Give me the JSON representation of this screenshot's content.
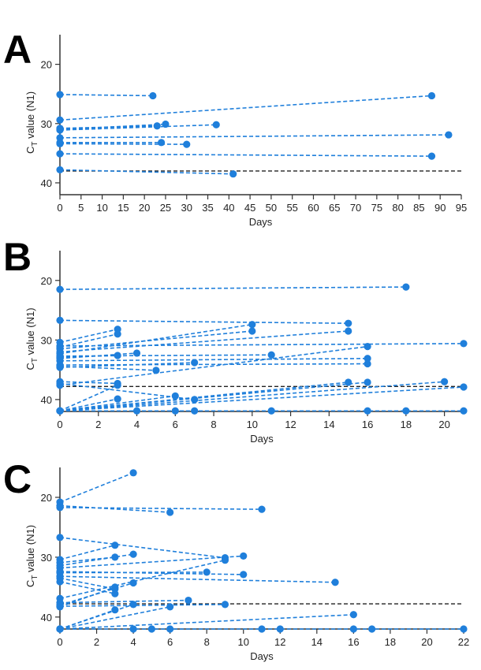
{
  "colors": {
    "series": "#1f7fdb",
    "threshold": "#222222",
    "axis": "#333333"
  },
  "chart_data": [
    {
      "panel": "A",
      "type": "scatter",
      "xlabel": "Days",
      "ylabel": "CT value (N1)",
      "ylabel_parts": {
        "main": "C",
        "sub": "T",
        "rest": " value (N1)"
      },
      "xlim": [
        0,
        95
      ],
      "ylim": [
        15,
        42
      ],
      "y_inverted": true,
      "xticks": [
        0,
        5,
        10,
        15,
        20,
        25,
        30,
        35,
        40,
        45,
        50,
        55,
        60,
        65,
        70,
        75,
        80,
        85,
        90,
        95
      ],
      "yticks": [
        20,
        30,
        40
      ],
      "threshold": 38,
      "series": [
        {
          "points": [
            [
              0,
              25.1
            ],
            [
              22,
              25.3
            ]
          ]
        },
        {
          "points": [
            [
              0,
              29.4
            ],
            [
              88,
              25.3
            ]
          ]
        },
        {
          "points": [
            [
              0,
              30.8
            ],
            [
              23,
              30.4
            ]
          ]
        },
        {
          "points": [
            [
              0,
              31.0
            ],
            [
              25,
              30.1
            ]
          ]
        },
        {
          "points": [
            [
              0,
              31.1
            ],
            [
              37,
              30.2
            ]
          ]
        },
        {
          "points": [
            [
              0,
              32.4
            ],
            [
              92,
              31.9
            ]
          ]
        },
        {
          "points": [
            [
              0,
              33.2
            ],
            [
              24,
              33.2
            ]
          ]
        },
        {
          "points": [
            [
              0,
              33.4
            ],
            [
              30,
              33.5
            ]
          ]
        },
        {
          "points": [
            [
              0,
              35.1
            ],
            [
              88,
              35.5
            ]
          ]
        },
        {
          "points": [
            [
              0,
              37.8
            ],
            [
              41,
              38.5
            ]
          ]
        }
      ]
    },
    {
      "panel": "B",
      "type": "scatter",
      "xlabel": "Days",
      "ylabel": "CT value (N1)",
      "ylabel_parts": {
        "main": "C",
        "sub": "T",
        "rest": " value (N1)"
      },
      "xlim": [
        0,
        21
      ],
      "ylim": [
        15,
        42
      ],
      "y_inverted": true,
      "xticks": [
        0,
        2,
        4,
        6,
        8,
        10,
        12,
        14,
        16,
        18,
        20
      ],
      "yticks": [
        20,
        30,
        40
      ],
      "threshold": 37.8,
      "series": [
        {
          "points": [
            [
              0,
              21.5
            ],
            [
              18,
              21.1
            ]
          ]
        },
        {
          "points": [
            [
              0,
              26.7
            ],
            [
              15,
              27.2
            ]
          ]
        },
        {
          "points": [
            [
              0,
              30.4
            ],
            [
              3,
              28.2
            ]
          ]
        },
        {
          "points": [
            [
              0,
              31.2
            ],
            [
              3,
              29.0
            ]
          ]
        },
        {
          "points": [
            [
              0,
              31.0
            ],
            [
              21,
              30.6
            ]
          ]
        },
        {
          "points": [
            [
              0,
              31.5
            ],
            [
              10,
              28.5
            ]
          ]
        },
        {
          "points": [
            [
              0,
              32.3
            ],
            [
              10,
              27.4
            ]
          ]
        },
        {
          "points": [
            [
              0,
              32.0
            ],
            [
              15,
              28.5
            ]
          ]
        },
        {
          "points": [
            [
              0,
              32.9
            ],
            [
              3,
              32.6
            ]
          ]
        },
        {
          "points": [
            [
              0,
              33.1
            ],
            [
              4,
              32.2
            ]
          ]
        },
        {
          "points": [
            [
              0,
              32.7
            ],
            [
              11,
              32.5
            ]
          ]
        },
        {
          "points": [
            [
              0,
              34.6
            ],
            [
              7,
              33.8
            ]
          ]
        },
        {
          "points": [
            [
              0,
              34.4
            ],
            [
              5,
              35.1
            ]
          ]
        },
        {
          "points": [
            [
              0,
              34.2
            ],
            [
              16,
              34.0
            ]
          ]
        },
        {
          "points": [
            [
              0,
              33.5
            ],
            [
              16,
              33.1
            ]
          ]
        },
        {
          "points": [
            [
              0,
              37.0
            ],
            [
              3,
              37.3
            ]
          ]
        },
        {
          "points": [
            [
              0,
              37.6
            ],
            [
              16,
              31.1
            ]
          ]
        },
        {
          "points": [
            [
              0,
              41.9
            ],
            [
              3,
              37.6
            ]
          ]
        },
        {
          "points": [
            [
              0,
              41.9
            ],
            [
              6,
              39.4
            ]
          ]
        },
        {
          "points": [
            [
              0,
              41.9
            ],
            [
              3,
              39.9
            ]
          ]
        },
        {
          "points": [
            [
              0,
              37.3
            ],
            [
              7,
              40.0
            ]
          ]
        },
        {
          "points": [
            [
              0,
              41.9
            ],
            [
              15,
              37.1
            ]
          ]
        },
        {
          "points": [
            [
              0,
              41.9
            ],
            [
              16,
              37.1
            ]
          ]
        },
        {
          "points": [
            [
              0,
              41.9
            ],
            [
              20,
              37.0
            ]
          ]
        },
        {
          "points": [
            [
              0,
              41.9
            ],
            [
              21,
              37.9
            ]
          ]
        },
        {
          "points": [
            [
              0,
              41.9
            ],
            [
              4,
              41.9
            ],
            [
              6,
              41.9
            ],
            [
              7,
              41.9
            ],
            [
              11,
              41.9
            ],
            [
              16,
              41.9
            ],
            [
              18,
              41.9
            ],
            [
              21,
              41.9
            ]
          ]
        }
      ]
    },
    {
      "panel": "C",
      "type": "scatter",
      "xlabel": "Days",
      "ylabel": "CT value (N1)",
      "ylabel_parts": {
        "main": "C",
        "sub": "T",
        "rest": " value (N1)"
      },
      "xlim": [
        0,
        22
      ],
      "ylim": [
        15,
        42
      ],
      "y_inverted": true,
      "xticks": [
        0,
        2,
        4,
        6,
        8,
        10,
        12,
        14,
        16,
        18,
        20,
        22
      ],
      "yticks": [
        20,
        30,
        40
      ],
      "threshold": 37.8,
      "series": [
        {
          "points": [
            [
              0,
              20.8
            ],
            [
              4,
              15.9
            ]
          ]
        },
        {
          "points": [
            [
              0,
              21.4
            ],
            [
              6,
              22.5
            ]
          ]
        },
        {
          "points": [
            [
              0,
              21.7
            ],
            [
              11,
              22.0
            ]
          ]
        },
        {
          "points": [
            [
              0,
              26.7
            ],
            [
              9,
              30.1
            ]
          ]
        },
        {
          "points": [
            [
              0,
              30.4
            ],
            [
              3,
              28.0
            ]
          ]
        },
        {
          "points": [
            [
              0,
              30.9
            ],
            [
              3,
              30.0
            ]
          ]
        },
        {
          "points": [
            [
              0,
              31.4
            ],
            [
              4,
              29.5
            ]
          ]
        },
        {
          "points": [
            [
              0,
              31.8
            ],
            [
              10,
              29.8
            ]
          ]
        },
        {
          "points": [
            [
              0,
              32.6
            ],
            [
              8,
              32.5
            ]
          ]
        },
        {
          "points": [
            [
              0,
              32.4
            ],
            [
              10,
              32.9
            ]
          ]
        },
        {
          "points": [
            [
              0,
              33.2
            ],
            [
              15,
              34.2
            ]
          ]
        },
        {
          "points": [
            [
              0,
              33.5
            ],
            [
              3,
              35.3
            ]
          ]
        },
        {
          "points": [
            [
              0,
              34.1
            ],
            [
              3,
              36.1
            ]
          ]
        },
        {
          "points": [
            [
              0,
              36.9
            ],
            [
              9,
              30.5
            ]
          ]
        },
        {
          "points": [
            [
              0,
              37.6
            ],
            [
              7,
              37.2
            ]
          ]
        },
        {
          "points": [
            [
              0,
              38.2
            ],
            [
              9,
              37.9
            ]
          ]
        },
        {
          "points": [
            [
              0,
              38.3
            ],
            [
              3,
              35.0
            ]
          ]
        },
        {
          "points": [
            [
              0,
              38.0
            ],
            [
              4,
              34.3
            ]
          ]
        },
        {
          "points": [
            [
              0,
              42.0
            ],
            [
              3,
              38.8
            ]
          ]
        },
        {
          "points": [
            [
              0,
              42.0
            ],
            [
              4,
              37.9
            ]
          ]
        },
        {
          "points": [
            [
              0,
              42.0
            ],
            [
              6,
              38.3
            ]
          ]
        },
        {
          "points": [
            [
              0,
              42.0
            ],
            [
              16,
              39.6
            ]
          ]
        },
        {
          "points": [
            [
              0,
              42.0
            ],
            [
              4,
              42.0
            ],
            [
              5,
              42.0
            ],
            [
              6,
              42.0
            ],
            [
              11,
              42.0
            ],
            [
              12,
              42.0
            ],
            [
              16,
              42.0
            ],
            [
              17,
              42.0
            ],
            [
              22,
              42.0
            ]
          ]
        }
      ]
    }
  ]
}
